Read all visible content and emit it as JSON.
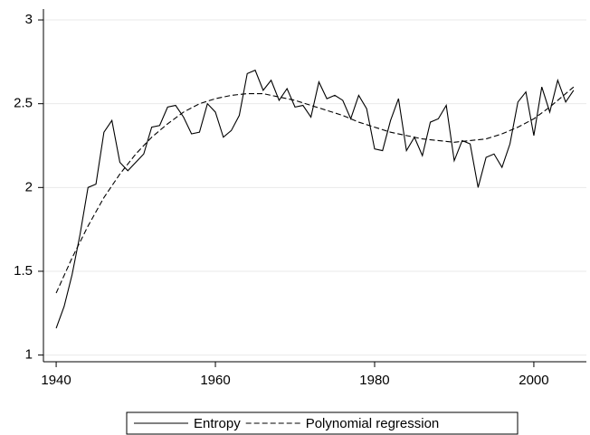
{
  "chart_data": {
    "type": "line",
    "x": [
      1940,
      1941,
      1942,
      1943,
      1944,
      1945,
      1946,
      1947,
      1948,
      1949,
      1950,
      1951,
      1952,
      1953,
      1954,
      1955,
      1956,
      1957,
      1958,
      1959,
      1960,
      1961,
      1962,
      1963,
      1964,
      1965,
      1966,
      1967,
      1968,
      1969,
      1970,
      1971,
      1972,
      1973,
      1974,
      1975,
      1976,
      1977,
      1978,
      1979,
      1980,
      1981,
      1982,
      1983,
      1984,
      1985,
      1986,
      1987,
      1988,
      1989,
      1990,
      1991,
      1992,
      1993,
      1994,
      1995,
      1996,
      1997,
      1998,
      1999,
      2000,
      2001,
      2002,
      2003,
      2004,
      2005
    ],
    "series": [
      {
        "name": "Entropy",
        "color": "#000000",
        "dash": false,
        "values": [
          1.16,
          1.29,
          1.48,
          1.72,
          2.0,
          2.02,
          2.33,
          2.4,
          2.15,
          2.1,
          2.15,
          2.2,
          2.36,
          2.37,
          2.48,
          2.49,
          2.42,
          2.32,
          2.33,
          2.5,
          2.45,
          2.3,
          2.34,
          2.43,
          2.68,
          2.7,
          2.58,
          2.64,
          2.52,
          2.59,
          2.48,
          2.49,
          2.42,
          2.63,
          2.53,
          2.55,
          2.52,
          2.41,
          2.55,
          2.47,
          2.23,
          2.22,
          2.4,
          2.53,
          2.22,
          2.3,
          2.19,
          2.39,
          2.41,
          2.49,
          2.16,
          2.28,
          2.26,
          2.0,
          2.18,
          2.2,
          2.12,
          2.26,
          2.51,
          2.57,
          2.31,
          2.6,
          2.45,
          2.64,
          2.51,
          2.58
        ]
      },
      {
        "name": "Polynomial regression",
        "color": "#000000",
        "dash": true,
        "x": [
          1940,
          1942,
          1944,
          1946,
          1948,
          1950,
          1952,
          1954,
          1956,
          1958,
          1960,
          1962,
          1964,
          1966,
          1968,
          1970,
          1972,
          1974,
          1976,
          1978,
          1980,
          1982,
          1984,
          1986,
          1988,
          1990,
          1992,
          1994,
          1996,
          1998,
          2000,
          2002,
          2004,
          2005
        ],
        "values": [
          1.37,
          1.58,
          1.77,
          1.94,
          2.08,
          2.2,
          2.3,
          2.38,
          2.45,
          2.5,
          2.53,
          2.55,
          2.56,
          2.56,
          2.54,
          2.52,
          2.49,
          2.46,
          2.43,
          2.39,
          2.36,
          2.33,
          2.31,
          2.29,
          2.28,
          2.27,
          2.28,
          2.29,
          2.32,
          2.36,
          2.41,
          2.48,
          2.56,
          2.6
        ]
      }
    ],
    "xlim": [
      1938.4,
      2006.6
    ],
    "xticks": [
      1940,
      1960,
      1980,
      2000
    ],
    "ylim": [
      0.96,
      3.065
    ],
    "yticks": [
      1,
      1.5,
      2,
      2.5,
      3
    ],
    "grid": true,
    "legend": "bottom"
  }
}
